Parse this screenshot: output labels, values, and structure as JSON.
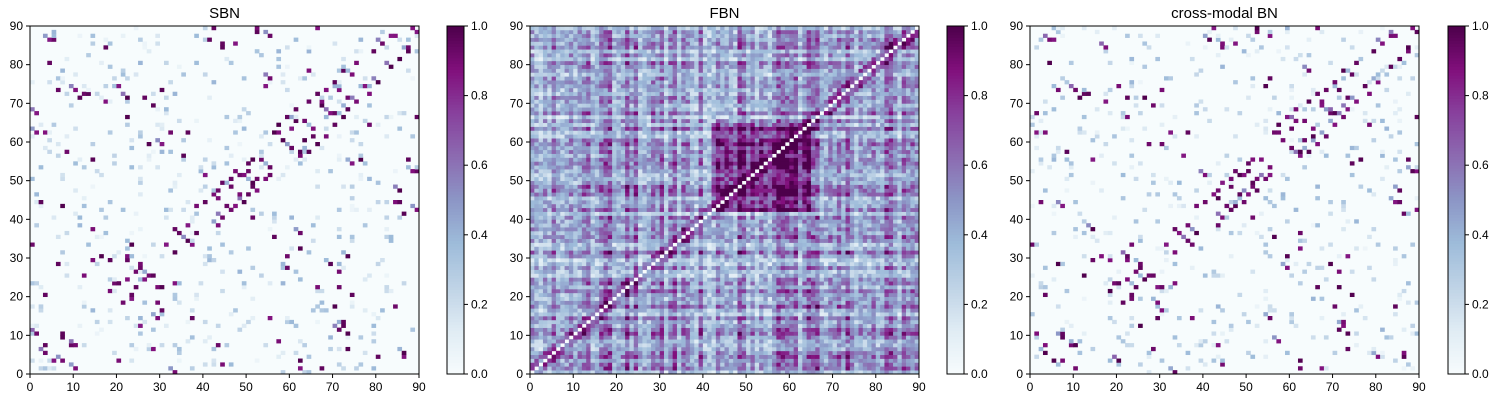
{
  "chart_data": [
    {
      "type": "heatmap",
      "title": "SBN",
      "x_range": [
        0,
        90
      ],
      "y_range": [
        0,
        90
      ],
      "x_ticks": [
        "0",
        "10",
        "20",
        "30",
        "40",
        "50",
        "60",
        "70",
        "80",
        "90"
      ],
      "y_ticks": [
        "0",
        "10",
        "20",
        "30",
        "40",
        "50",
        "60",
        "70",
        "80",
        "90"
      ],
      "grid": "off",
      "matrix_size": 90,
      "colorbar": {
        "range": [
          0,
          1
        ],
        "ticks": [
          "0.0",
          "0.2",
          "0.4",
          "0.6",
          "0.8",
          "1.0"
        ]
      },
      "pattern": "sparse",
      "strong_cells": [
        [
          1,
          10
        ],
        [
          3,
          7
        ],
        [
          3,
          20
        ],
        [
          5,
          3
        ],
        [
          7,
          10
        ],
        [
          9,
          7
        ],
        [
          10,
          1
        ],
        [
          12,
          25
        ],
        [
          14,
          29
        ],
        [
          16,
          30
        ],
        [
          18,
          29
        ],
        [
          20,
          23
        ],
        [
          21,
          18
        ],
        [
          22,
          24
        ],
        [
          23,
          19
        ],
        [
          24,
          22
        ],
        [
          25,
          27
        ],
        [
          26,
          24
        ],
        [
          28,
          25
        ],
        [
          29,
          22
        ],
        [
          30,
          22
        ],
        [
          31,
          33
        ],
        [
          33,
          37
        ],
        [
          34,
          36
        ],
        [
          36,
          38
        ],
        [
          38,
          43
        ],
        [
          40,
          44
        ],
        [
          42,
          46
        ],
        [
          43,
          47
        ],
        [
          44,
          49
        ],
        [
          45,
          43
        ],
        [
          46,
          50
        ],
        [
          47,
          52
        ],
        [
          48,
          46
        ],
        [
          49,
          51
        ],
        [
          50,
          54
        ],
        [
          51,
          48
        ],
        [
          52,
          50
        ],
        [
          53,
          55
        ],
        [
          55,
          51
        ],
        [
          56,
          62
        ],
        [
          57,
          64
        ],
        [
          58,
          60
        ],
        [
          59,
          66
        ],
        [
          60,
          63
        ],
        [
          61,
          68
        ],
        [
          62,
          57
        ],
        [
          63,
          65
        ],
        [
          64,
          70
        ],
        [
          65,
          61
        ],
        [
          66,
          72
        ],
        [
          67,
          69
        ],
        [
          68,
          73
        ],
        [
          70,
          75
        ],
        [
          72,
          78
        ],
        [
          73,
          71
        ],
        [
          75,
          80
        ],
        [
          77,
          74
        ],
        [
          79,
          83
        ],
        [
          81,
          85
        ],
        [
          83,
          87
        ],
        [
          85,
          81
        ],
        [
          87,
          84
        ],
        [
          88,
          89
        ],
        [
          89,
          52
        ],
        [
          86,
          4
        ],
        [
          85,
          44
        ],
        [
          73,
          6
        ],
        [
          73,
          10
        ],
        [
          72,
          13
        ],
        [
          71,
          22
        ],
        [
          71,
          26
        ],
        [
          67,
          70
        ],
        [
          62,
          1
        ],
        [
          59,
          30
        ],
        [
          56,
          35
        ],
        [
          54,
          74
        ],
        [
          52,
          88
        ],
        [
          51,
          40
        ],
        [
          44,
          84
        ],
        [
          43,
          7
        ],
        [
          42,
          89
        ],
        [
          37,
          14
        ],
        [
          33,
          23
        ],
        [
          27,
          59
        ],
        [
          22,
          66
        ],
        [
          20,
          74
        ],
        [
          14,
          55
        ],
        [
          11,
          71
        ],
        [
          8,
          57
        ],
        [
          5,
          86
        ],
        [
          4,
          80
        ],
        [
          3,
          62
        ],
        [
          2,
          44
        ],
        [
          0,
          33
        ],
        [
          76,
          55
        ],
        [
          78,
          64
        ],
        [
          84,
          17
        ],
        [
          86,
          41
        ],
        [
          87,
          55
        ],
        [
          67,
          1
        ],
        [
          62,
          32
        ],
        [
          47,
          85
        ],
        [
          17,
          70
        ],
        [
          28,
          69
        ],
        [
          6,
          28
        ],
        [
          12,
          72
        ],
        [
          30,
          73
        ],
        [
          36,
          62
        ],
        [
          66,
          89
        ]
      ]
    },
    {
      "type": "heatmap",
      "title": "FBN",
      "x_range": [
        0,
        90
      ],
      "y_range": [
        0,
        90
      ],
      "x_ticks": [
        "0",
        "10",
        "20",
        "30",
        "40",
        "50",
        "60",
        "70",
        "80",
        "90"
      ],
      "y_ticks": [
        "0",
        "10",
        "20",
        "30",
        "40",
        "50",
        "60",
        "70",
        "80",
        "90"
      ],
      "grid": "off",
      "matrix_size": 90,
      "colorbar": {
        "range": [
          0,
          1
        ],
        "ticks": [
          "0.0",
          "0.2",
          "0.4",
          "0.6",
          "0.8",
          "1.0"
        ]
      },
      "pattern": "dense",
      "dense_block": [
        42,
        64
      ]
    },
    {
      "type": "heatmap",
      "title": "cross-modal BN",
      "x_range": [
        0,
        90
      ],
      "y_range": [
        0,
        90
      ],
      "x_ticks": [
        "0",
        "10",
        "20",
        "30",
        "40",
        "50",
        "60",
        "70",
        "80",
        "90"
      ],
      "y_ticks": [
        "0",
        "10",
        "20",
        "30",
        "40",
        "50",
        "60",
        "70",
        "80",
        "90"
      ],
      "grid": "off",
      "matrix_size": 90,
      "colorbar": {
        "range": [
          0,
          1
        ],
        "ticks": [
          "0.0",
          "0.2",
          "0.4",
          "0.6",
          "0.8",
          "1.0"
        ]
      },
      "pattern": "sparse",
      "strong_cells": [
        [
          1,
          10
        ],
        [
          3,
          7
        ],
        [
          3,
          20
        ],
        [
          5,
          3
        ],
        [
          7,
          10
        ],
        [
          9,
          7
        ],
        [
          10,
          1
        ],
        [
          12,
          25
        ],
        [
          14,
          29
        ],
        [
          16,
          30
        ],
        [
          18,
          29
        ],
        [
          20,
          23
        ],
        [
          21,
          18
        ],
        [
          22,
          24
        ],
        [
          23,
          19
        ],
        [
          24,
          22
        ],
        [
          25,
          27
        ],
        [
          26,
          24
        ],
        [
          28,
          25
        ],
        [
          29,
          22
        ],
        [
          30,
          22
        ],
        [
          31,
          33
        ],
        [
          33,
          37
        ],
        [
          34,
          36
        ],
        [
          36,
          38
        ],
        [
          38,
          43
        ],
        [
          40,
          44
        ],
        [
          42,
          46
        ],
        [
          43,
          47
        ],
        [
          44,
          49
        ],
        [
          45,
          43
        ],
        [
          46,
          50
        ],
        [
          47,
          52
        ],
        [
          48,
          46
        ],
        [
          49,
          51
        ],
        [
          50,
          54
        ],
        [
          51,
          48
        ],
        [
          52,
          50
        ],
        [
          53,
          55
        ],
        [
          55,
          51
        ],
        [
          56,
          62
        ],
        [
          57,
          64
        ],
        [
          58,
          60
        ],
        [
          59,
          66
        ],
        [
          60,
          63
        ],
        [
          61,
          68
        ],
        [
          62,
          57
        ],
        [
          63,
          65
        ],
        [
          64,
          70
        ],
        [
          65,
          61
        ],
        [
          66,
          72
        ],
        [
          67,
          69
        ],
        [
          68,
          73
        ],
        [
          70,
          75
        ],
        [
          72,
          78
        ],
        [
          73,
          71
        ],
        [
          75,
          80
        ],
        [
          77,
          74
        ],
        [
          79,
          83
        ],
        [
          81,
          85
        ],
        [
          83,
          87
        ],
        [
          85,
          81
        ],
        [
          87,
          84
        ],
        [
          88,
          89
        ],
        [
          89,
          52
        ],
        [
          86,
          4
        ],
        [
          85,
          44
        ],
        [
          73,
          6
        ],
        [
          73,
          10
        ],
        [
          72,
          13
        ],
        [
          71,
          22
        ],
        [
          71,
          26
        ],
        [
          67,
          70
        ],
        [
          62,
          1
        ],
        [
          59,
          30
        ],
        [
          56,
          35
        ],
        [
          54,
          74
        ],
        [
          52,
          88
        ],
        [
          51,
          40
        ],
        [
          44,
          84
        ],
        [
          43,
          7
        ],
        [
          42,
          89
        ],
        [
          37,
          14
        ],
        [
          33,
          23
        ],
        [
          27,
          59
        ],
        [
          22,
          66
        ],
        [
          20,
          74
        ],
        [
          14,
          55
        ],
        [
          11,
          71
        ],
        [
          8,
          57
        ],
        [
          5,
          86
        ],
        [
          4,
          80
        ],
        [
          3,
          62
        ],
        [
          2,
          44
        ],
        [
          0,
          33
        ],
        [
          76,
          55
        ],
        [
          78,
          64
        ],
        [
          84,
          17
        ],
        [
          86,
          41
        ],
        [
          87,
          55
        ],
        [
          67,
          1
        ],
        [
          62,
          32
        ],
        [
          47,
          85
        ],
        [
          17,
          70
        ],
        [
          28,
          69
        ],
        [
          6,
          28
        ],
        [
          12,
          72
        ],
        [
          30,
          73
        ],
        [
          36,
          62
        ],
        [
          66,
          89
        ]
      ]
    }
  ],
  "colormap": [
    "#f7fcfd",
    "#e0ecf4",
    "#bfd3e6",
    "#9ebcda",
    "#8c96c6",
    "#8c6bb1",
    "#88419d",
    "#810f7c",
    "#4d004b"
  ]
}
